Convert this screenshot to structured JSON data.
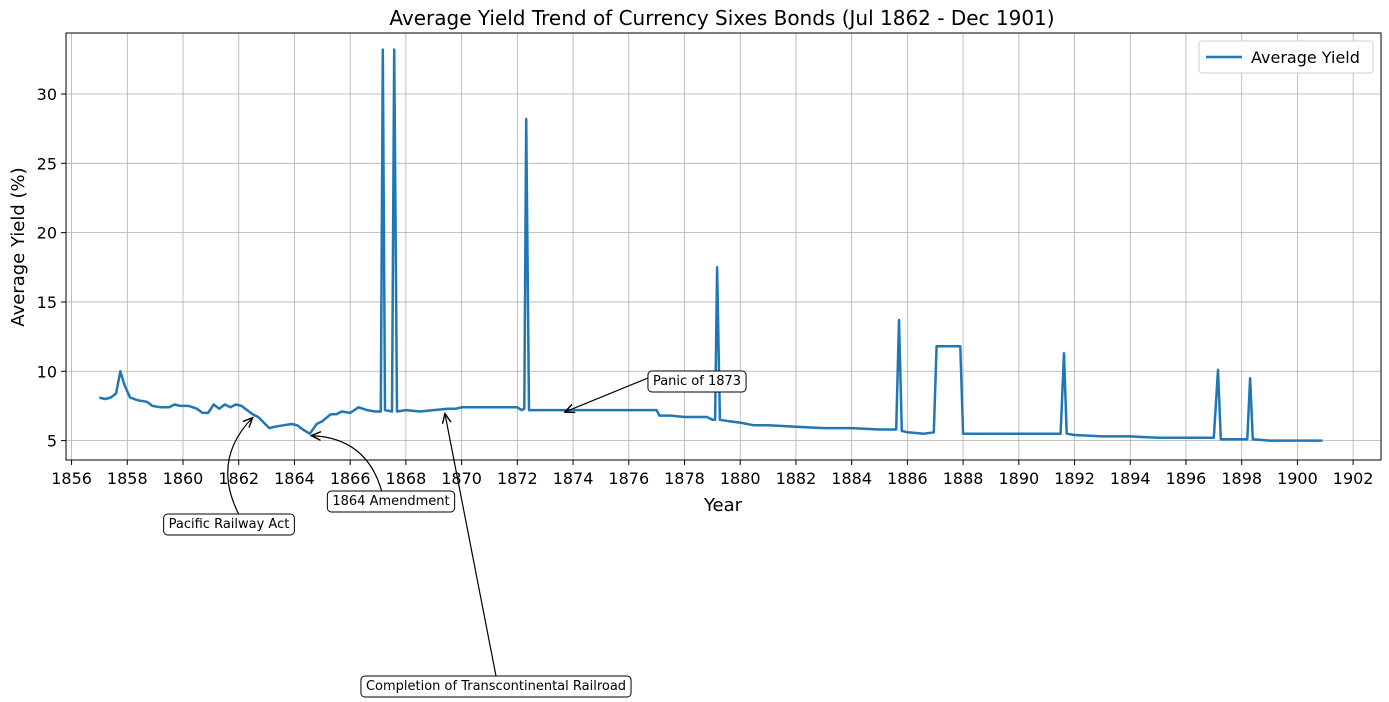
{
  "chart_data": {
    "type": "line",
    "title": "Average Yield Trend of Currency Sixes Bonds (Jul 1862 - Dec 1901)",
    "xlabel": "Year",
    "ylabel": "Average Yield (%)",
    "xlim": [
      1855.8,
      1903.0
    ],
    "ylim": [
      3.6,
      34.4
    ],
    "xticks": [
      1856,
      1858,
      1860,
      1862,
      1864,
      1866,
      1868,
      1870,
      1872,
      1874,
      1876,
      1878,
      1880,
      1882,
      1884,
      1886,
      1888,
      1890,
      1892,
      1894,
      1896,
      1898,
      1900,
      1902
    ],
    "yticks": [
      5,
      10,
      15,
      20,
      25,
      30
    ],
    "grid": true,
    "legend_position": "top-right",
    "line_color": "#1f77b4",
    "series": [
      {
        "name": "Average Yield",
        "points": [
          [
            1857.0,
            8.1
          ],
          [
            1857.2,
            8.0
          ],
          [
            1857.4,
            8.1
          ],
          [
            1857.6,
            8.4
          ],
          [
            1857.75,
            10.0
          ],
          [
            1857.9,
            9.0
          ],
          [
            1858.1,
            8.1
          ],
          [
            1858.4,
            7.9
          ],
          [
            1858.7,
            7.8
          ],
          [
            1858.9,
            7.5
          ],
          [
            1859.2,
            7.4
          ],
          [
            1859.5,
            7.4
          ],
          [
            1859.7,
            7.6
          ],
          [
            1859.9,
            7.5
          ],
          [
            1860.2,
            7.5
          ],
          [
            1860.5,
            7.3
          ],
          [
            1860.7,
            7.0
          ],
          [
            1860.9,
            7.0
          ],
          [
            1861.1,
            7.6
          ],
          [
            1861.3,
            7.3
          ],
          [
            1861.5,
            7.6
          ],
          [
            1861.7,
            7.4
          ],
          [
            1861.9,
            7.6
          ],
          [
            1862.1,
            7.5
          ],
          [
            1862.3,
            7.2
          ],
          [
            1862.5,
            6.9
          ],
          [
            1862.7,
            6.7
          ],
          [
            1862.9,
            6.3
          ],
          [
            1863.1,
            5.9
          ],
          [
            1863.3,
            6.0
          ],
          [
            1863.6,
            6.1
          ],
          [
            1863.9,
            6.2
          ],
          [
            1864.1,
            6.1
          ],
          [
            1864.3,
            5.8
          ],
          [
            1864.55,
            5.5
          ],
          [
            1864.8,
            6.2
          ],
          [
            1865.0,
            6.4
          ],
          [
            1865.3,
            6.9
          ],
          [
            1865.5,
            6.9
          ],
          [
            1865.7,
            7.1
          ],
          [
            1866.0,
            7.0
          ],
          [
            1866.3,
            7.4
          ],
          [
            1866.6,
            7.2
          ],
          [
            1866.9,
            7.1
          ],
          [
            1867.1,
            7.1
          ],
          [
            1867.17,
            33.2
          ],
          [
            1867.25,
            7.2
          ],
          [
            1867.5,
            7.1
          ],
          [
            1867.58,
            33.2
          ],
          [
            1867.68,
            7.1
          ],
          [
            1868.0,
            7.2
          ],
          [
            1868.5,
            7.1
          ],
          [
            1869.0,
            7.2
          ],
          [
            1869.5,
            7.3
          ],
          [
            1869.8,
            7.3
          ],
          [
            1870.0,
            7.4
          ],
          [
            1871.0,
            7.4
          ],
          [
            1872.0,
            7.4
          ],
          [
            1872.15,
            7.2
          ],
          [
            1872.25,
            7.3
          ],
          [
            1872.32,
            28.2
          ],
          [
            1872.42,
            7.2
          ],
          [
            1873.0,
            7.2
          ],
          [
            1874.0,
            7.2
          ],
          [
            1875.0,
            7.2
          ],
          [
            1876.0,
            7.2
          ],
          [
            1877.0,
            7.2
          ],
          [
            1877.1,
            6.8
          ],
          [
            1877.5,
            6.8
          ],
          [
            1878.0,
            6.7
          ],
          [
            1878.8,
            6.7
          ],
          [
            1879.0,
            6.5
          ],
          [
            1879.1,
            6.5
          ],
          [
            1879.17,
            17.5
          ],
          [
            1879.27,
            6.5
          ],
          [
            1879.6,
            6.4
          ],
          [
            1880.0,
            6.3
          ],
          [
            1880.5,
            6.1
          ],
          [
            1881.0,
            6.1
          ],
          [
            1882.0,
            6.0
          ],
          [
            1883.0,
            5.9
          ],
          [
            1884.0,
            5.9
          ],
          [
            1885.0,
            5.8
          ],
          [
            1885.6,
            5.8
          ],
          [
            1885.7,
            13.7
          ],
          [
            1885.8,
            5.7
          ],
          [
            1886.0,
            5.6
          ],
          [
            1886.6,
            5.5
          ],
          [
            1886.95,
            5.6
          ],
          [
            1887.05,
            11.8
          ],
          [
            1887.9,
            11.8
          ],
          [
            1888.0,
            5.5
          ],
          [
            1889.0,
            5.5
          ],
          [
            1890.0,
            5.5
          ],
          [
            1891.0,
            5.5
          ],
          [
            1891.5,
            5.5
          ],
          [
            1891.62,
            11.3
          ],
          [
            1891.72,
            5.5
          ],
          [
            1892.0,
            5.4
          ],
          [
            1893.0,
            5.3
          ],
          [
            1894.0,
            5.3
          ],
          [
            1895.0,
            5.2
          ],
          [
            1896.0,
            5.2
          ],
          [
            1897.0,
            5.2
          ],
          [
            1897.15,
            10.1
          ],
          [
            1897.25,
            5.1
          ],
          [
            1898.0,
            5.1
          ],
          [
            1898.2,
            5.1
          ],
          [
            1898.3,
            9.5
          ],
          [
            1898.4,
            5.1
          ],
          [
            1899.0,
            5.0
          ],
          [
            1900.0,
            5.0
          ],
          [
            1900.9,
            5.0
          ]
        ]
      }
    ],
    "annotations": [
      {
        "text": "Pacific Railway Act",
        "x": 1862.5,
        "y": 6.8
      },
      {
        "text": "1864 Amendment",
        "x": 1864.6,
        "y": 5.5
      },
      {
        "text": "Completion of Transcontinental Railroad",
        "x": 1869.4,
        "y": 7.1
      },
      {
        "text": "Panic of 1873",
        "x": 1873.7,
        "y": 7.2
      }
    ]
  }
}
